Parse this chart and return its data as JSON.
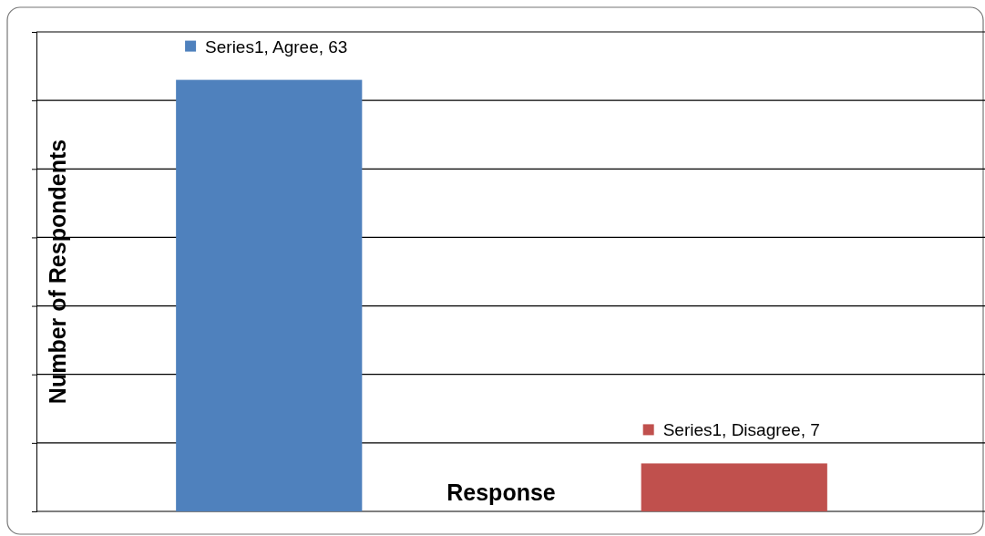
{
  "chart_data": {
    "type": "bar",
    "xlabel": "Response",
    "ylabel": "Number of Respondents",
    "categories": [
      null,
      null
    ],
    "values": [
      63,
      7
    ],
    "colors": [
      "#4f81bd",
      "#c0504d"
    ],
    "value_labels": [
      "Series1, Agree, 63",
      "Series1, Disagree, 7"
    ],
    "ylim": [
      0,
      70
    ],
    "yticks": [
      {
        "value": 0,
        "label": null
      },
      {
        "value": 10,
        "label": null
      },
      {
        "value": 20,
        "label": null
      },
      {
        "value": 30,
        "label": null
      },
      {
        "value": 40,
        "label": null
      },
      {
        "value": 50,
        "label": null
      },
      {
        "value": 60,
        "label": null
      },
      {
        "value": 70,
        "label": null
      }
    ],
    "grid": "y"
  }
}
